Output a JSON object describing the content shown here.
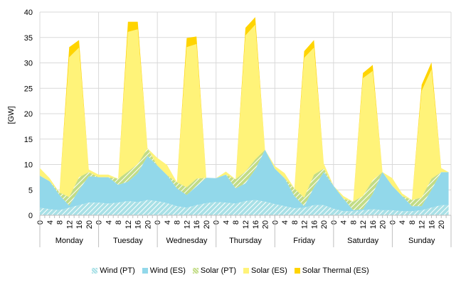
{
  "chart_data": {
    "type": "area",
    "stacked": true,
    "ylabel": "[GW]",
    "ylim": [
      0,
      40
    ],
    "yticks": [
      0,
      5,
      10,
      15,
      20,
      25,
      30,
      35,
      40
    ],
    "grid": true,
    "legend_position": "bottom",
    "hour_ticks": [
      "0",
      "4",
      "8",
      "12",
      "16",
      "20"
    ],
    "days": [
      "Monday",
      "Tuesday",
      "Wednesday",
      "Thursday",
      "Friday",
      "Saturday",
      "Sunday"
    ],
    "x_description": "hour of week, 0-167, 4-hour resolution",
    "x": [
      0,
      4,
      8,
      12,
      16,
      20,
      24,
      28,
      32,
      36,
      40,
      44,
      48,
      52,
      56,
      60,
      64,
      68,
      72,
      76,
      80,
      84,
      88,
      92,
      96,
      100,
      104,
      108,
      112,
      116,
      120,
      124,
      128,
      132,
      136,
      140,
      144,
      148,
      152,
      156,
      160,
      164,
      167
    ],
    "series": [
      {
        "name": "Wind (PT)",
        "color": "#a8e0e6",
        "hatch": true,
        "values": [
          1.5,
          1.2,
          1.0,
          1.5,
          2.0,
          2.5,
          2.5,
          2.3,
          2.5,
          2.8,
          2.6,
          3.0,
          2.8,
          2.4,
          1.8,
          1.5,
          2.0,
          2.4,
          2.6,
          2.5,
          2.3,
          2.8,
          3.0,
          2.7,
          2.2,
          1.8,
          1.4,
          1.5,
          2.0,
          2.0,
          1.3,
          0.8,
          0.8,
          1.0,
          1.2,
          1.0,
          1.0,
          0.8,
          0.8,
          1.0,
          1.5,
          2.0,
          2.0
        ]
      },
      {
        "name": "Wind (ES)",
        "color": "#92d8ea",
        "values": [
          6.3,
          5.5,
          3.0,
          0.4,
          3.0,
          5.2,
          5.0,
          5.2,
          3.5,
          3.8,
          5.7,
          8.7,
          7.0,
          5.5,
          3.5,
          2.5,
          3.7,
          5.0,
          4.7,
          5.5,
          3.0,
          3.5,
          6.0,
          10.2,
          7.0,
          5.5,
          2.4,
          0.3,
          3.5,
          6.5,
          4.5,
          2.5,
          0.2,
          0.2,
          3.0,
          7.5,
          4.8,
          3.0,
          1.0,
          0.8,
          3.5,
          6.5,
          6.5
        ]
      },
      {
        "name": "Solar (PT)",
        "color": "#c2dc86",
        "hatch": true,
        "values": [
          0,
          0,
          0.5,
          1.7,
          2.5,
          0.8,
          0,
          0,
          1.2,
          2.0,
          1.8,
          1.5,
          0,
          0,
          1.2,
          1.5,
          1.5,
          0,
          0,
          0,
          1.8,
          2.3,
          2.0,
          0,
          0,
          0,
          1.5,
          1.7,
          2.5,
          0.7,
          0,
          0,
          1.7,
          2.6,
          2.7,
          0,
          0,
          0,
          1.2,
          1.7,
          2.2,
          0,
          0
        ]
      },
      {
        "name": "Solar (ES)",
        "color": "#fff379",
        "values": [
          1.5,
          0.6,
          0,
          27.5,
          25.5,
          0.5,
          0.5,
          0.5,
          0,
          27.5,
          26.5,
          0,
          1.5,
          2.0,
          0,
          27.6,
          26.5,
          0,
          0,
          0.6,
          0,
          26.8,
          26.5,
          0,
          0.5,
          1.0,
          0,
          27.5,
          25.0,
          1.0,
          0,
          0.5,
          0,
          23.2,
          21.5,
          0,
          1.5,
          0.5,
          0,
          21.0,
          21.5,
          0.8,
          0
        ]
      },
      {
        "name": "Solar Thermal (ES)",
        "color": "#ffd400",
        "values": [
          0,
          0,
          0,
          2.0,
          1.5,
          0,
          0,
          0,
          0,
          2.0,
          1.5,
          0,
          0,
          0,
          0,
          1.8,
          1.5,
          0,
          0,
          0,
          0,
          1.5,
          1.5,
          0,
          0,
          0,
          0,
          1.3,
          1.5,
          0,
          0,
          0,
          0,
          1.0,
          1.2,
          0,
          0,
          0,
          0,
          1.2,
          1.4,
          0,
          0
        ]
      }
    ]
  },
  "legend": [
    {
      "label": "Wind (PT)",
      "color": "#a8e0e6",
      "hatch": true
    },
    {
      "label": "Wind (ES)",
      "color": "#92d8ea",
      "hatch": false
    },
    {
      "label": "Solar (PT)",
      "color": "#c2dc86",
      "hatch": true
    },
    {
      "label": "Solar (ES)",
      "color": "#fff379",
      "hatch": false
    },
    {
      "label": "Solar Thermal (ES)",
      "color": "#ffd400",
      "hatch": false
    }
  ]
}
